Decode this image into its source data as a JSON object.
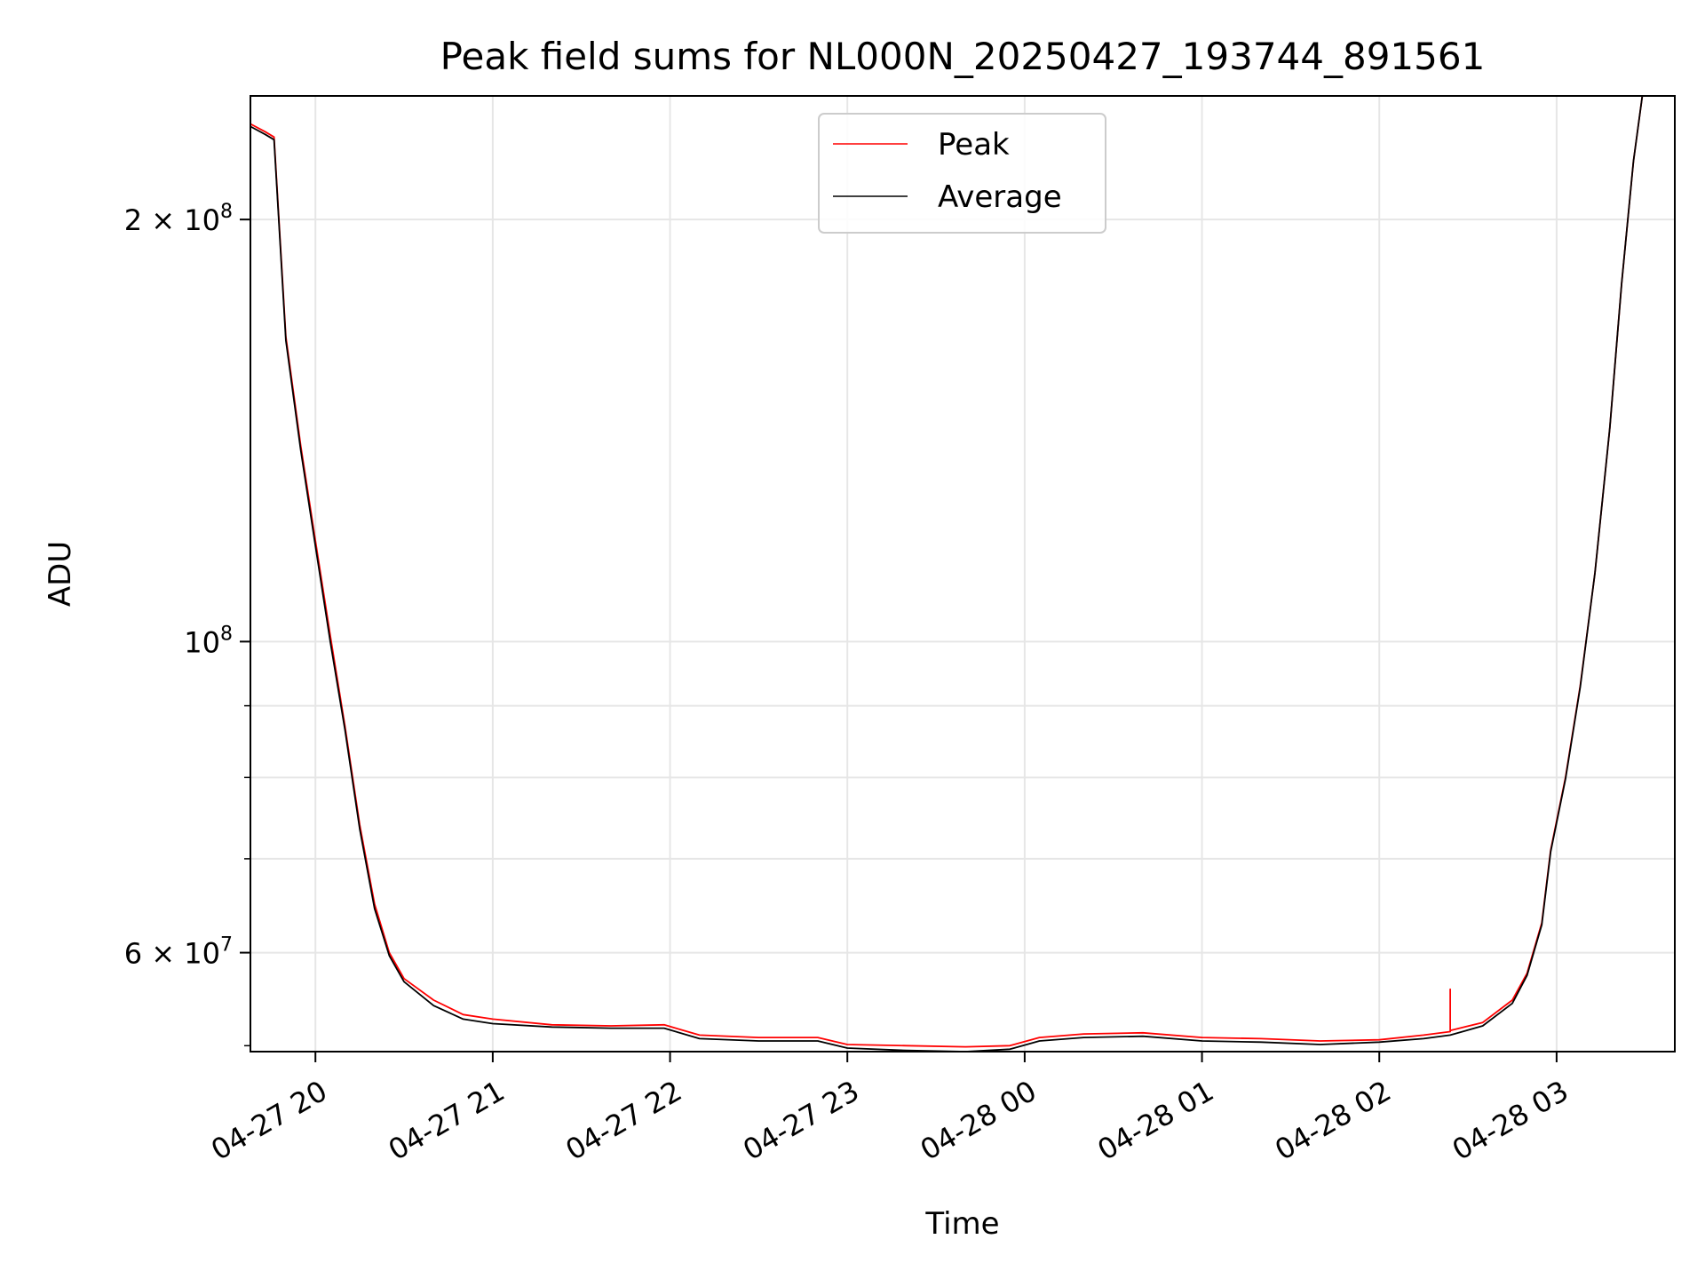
{
  "chart_data": {
    "type": "line",
    "title": "Peak field sums for NL000N_20250427_193744_891561",
    "xlabel": "Time",
    "ylabel": "ADU",
    "y_scale": "log",
    "ylim": [
      51000000,
      245000000
    ],
    "xlim": [
      "2025-04-27 19:38",
      "2025-04-28 03:40"
    ],
    "grid": true,
    "legend_position": "upper-center",
    "x_ticks": [
      {
        "t": "2025-04-27 20:00",
        "label": "04-27 20"
      },
      {
        "t": "2025-04-27 21:00",
        "label": "04-27 21"
      },
      {
        "t": "2025-04-27 22:00",
        "label": "04-27 22"
      },
      {
        "t": "2025-04-27 23:00",
        "label": "04-27 23"
      },
      {
        "t": "2025-04-28 00:00",
        "label": "04-28 00"
      },
      {
        "t": "2025-04-28 01:00",
        "label": "04-28 01"
      },
      {
        "t": "2025-04-28 02:00",
        "label": "04-28 02"
      },
      {
        "t": "2025-04-28 03:00",
        "label": "04-28 03"
      }
    ],
    "y_major_ticks": [
      {
        "value": 60000000,
        "mantissa": "6",
        "exponent": "7"
      },
      {
        "value": 100000000,
        "mantissa": "",
        "exponent": "8"
      },
      {
        "value": 200000000,
        "mantissa": "2",
        "exponent": "8"
      }
    ],
    "y_minor_ticks": [
      70000000,
      80000000,
      90000000
    ],
    "series": [
      {
        "name": "Peak",
        "color": "#ff0000",
        "points": [
          [
            "2025-04-27 19:38",
            234000000.0
          ],
          [
            "2025-04-27 19:43",
            231000000.0
          ],
          [
            "2025-04-27 19:46",
            229000000.0
          ],
          [
            "2025-04-27 19:50",
            165000000.0
          ],
          [
            "2025-04-27 19:55",
            138000000.0
          ],
          [
            "2025-04-27 20:00",
            118000000.0
          ],
          [
            "2025-04-27 20:05",
            101000000.0
          ],
          [
            "2025-04-27 20:10",
            87000000.0
          ],
          [
            "2025-04-27 20:15",
            74000000.0
          ],
          [
            "2025-04-27 20:20",
            65000000.0
          ],
          [
            "2025-04-27 20:25",
            60000000.0
          ],
          [
            "2025-04-27 20:30",
            57500000.0
          ],
          [
            "2025-04-27 20:40",
            55500000.0
          ],
          [
            "2025-04-27 20:50",
            54200000.0
          ],
          [
            "2025-04-27 21:00",
            53800000.0
          ],
          [
            "2025-04-27 21:20",
            53300000.0
          ],
          [
            "2025-04-27 21:40",
            53200000.0
          ],
          [
            "2025-04-27 21:58",
            53300000.0
          ],
          [
            "2025-04-27 22:10",
            52400000.0
          ],
          [
            "2025-04-27 22:30",
            52200000.0
          ],
          [
            "2025-04-27 22:50",
            52200000.0
          ],
          [
            "2025-04-27 23:00",
            51600000.0
          ],
          [
            "2025-04-27 23:20",
            51500000.0
          ],
          [
            "2025-04-27 23:40",
            51400000.0
          ],
          [
            "2025-04-27 23:55",
            51500000.0
          ],
          [
            "2025-04-28 00:05",
            52200000.0
          ],
          [
            "2025-04-28 00:20",
            52500000.0
          ],
          [
            "2025-04-28 00:40",
            52600000.0
          ],
          [
            "2025-04-28 01:00",
            52200000.0
          ],
          [
            "2025-04-28 01:20",
            52100000.0
          ],
          [
            "2025-04-28 01:40",
            51900000.0
          ],
          [
            "2025-04-28 02:00",
            52000000.0
          ],
          [
            "2025-04-28 02:15",
            52400000.0
          ],
          [
            "2025-04-28 02:24",
            52700000.0
          ],
          [
            "2025-04-28 02:24",
            56500000.0
          ],
          [
            "2025-04-28 02:24",
            52800000.0
          ],
          [
            "2025-04-28 02:35",
            53500000.0
          ],
          [
            "2025-04-28 02:45",
            55500000.0
          ],
          [
            "2025-04-28 02:50",
            58000000.0
          ],
          [
            "2025-04-28 02:55",
            63000000.0
          ],
          [
            "2025-04-28 02:58",
            71000000.0
          ],
          [
            "2025-04-28 03:03",
            80000000.0
          ],
          [
            "2025-04-28 03:08",
            93000000.0
          ],
          [
            "2025-04-28 03:13",
            112000000.0
          ],
          [
            "2025-04-28 03:18",
            142000000.0
          ],
          [
            "2025-04-28 03:22",
            180000000.0
          ],
          [
            "2025-04-28 03:26",
            220000000.0
          ],
          [
            "2025-04-28 03:29",
            245000000.0
          ]
        ]
      },
      {
        "name": "Average",
        "color": "#000000",
        "points": [
          [
            "2025-04-27 19:38",
            233000000.0
          ],
          [
            "2025-04-27 19:43",
            230000000.0
          ],
          [
            "2025-04-27 19:46",
            228000000.0
          ],
          [
            "2025-04-27 19:50",
            164000000.0
          ],
          [
            "2025-04-27 19:55",
            137000000.0
          ],
          [
            "2025-04-27 20:00",
            117000000.0
          ],
          [
            "2025-04-27 20:05",
            100000000.0
          ],
          [
            "2025-04-27 20:10",
            86500000.0
          ],
          [
            "2025-04-27 20:15",
            73500000.0
          ],
          [
            "2025-04-27 20:20",
            64500000.0
          ],
          [
            "2025-04-27 20:25",
            59700000.0
          ],
          [
            "2025-04-27 20:30",
            57200000.0
          ],
          [
            "2025-04-27 20:40",
            55000000.0
          ],
          [
            "2025-04-27 20:50",
            53800000.0
          ],
          [
            "2025-04-27 21:00",
            53400000.0
          ],
          [
            "2025-04-27 21:20",
            53100000.0
          ],
          [
            "2025-04-27 21:40",
            53000000.0
          ],
          [
            "2025-04-27 21:58",
            53000000.0
          ],
          [
            "2025-04-27 22:10",
            52100000.0
          ],
          [
            "2025-04-27 22:30",
            51900000.0
          ],
          [
            "2025-04-27 22:50",
            51900000.0
          ],
          [
            "2025-04-27 23:00",
            51300000.0
          ],
          [
            "2025-04-27 23:20",
            51100000.0
          ],
          [
            "2025-04-27 23:40",
            51000000.0
          ],
          [
            "2025-04-27 23:55",
            51200000.0
          ],
          [
            "2025-04-28 00:05",
            51900000.0
          ],
          [
            "2025-04-28 00:20",
            52200000.0
          ],
          [
            "2025-04-28 00:40",
            52300000.0
          ],
          [
            "2025-04-28 01:00",
            51900000.0
          ],
          [
            "2025-04-28 01:20",
            51800000.0
          ],
          [
            "2025-04-28 01:40",
            51600000.0
          ],
          [
            "2025-04-28 02:00",
            51800000.0
          ],
          [
            "2025-04-28 02:15",
            52100000.0
          ],
          [
            "2025-04-28 02:24",
            52400000.0
          ],
          [
            "2025-04-28 02:35",
            53200000.0
          ],
          [
            "2025-04-28 02:45",
            55200000.0
          ],
          [
            "2025-04-28 02:50",
            57800000.0
          ],
          [
            "2025-04-28 02:55",
            62800000.0
          ],
          [
            "2025-04-28 02:58",
            70800000.0
          ],
          [
            "2025-04-28 03:03",
            79800000.0
          ],
          [
            "2025-04-28 03:08",
            92800000.0
          ],
          [
            "2025-04-28 03:13",
            112000000.0
          ],
          [
            "2025-04-28 03:18",
            142000000.0
          ],
          [
            "2025-04-28 03:22",
            180000000.0
          ],
          [
            "2025-04-28 03:26",
            220000000.0
          ],
          [
            "2025-04-28 03:29",
            245000000.0
          ]
        ]
      }
    ]
  }
}
